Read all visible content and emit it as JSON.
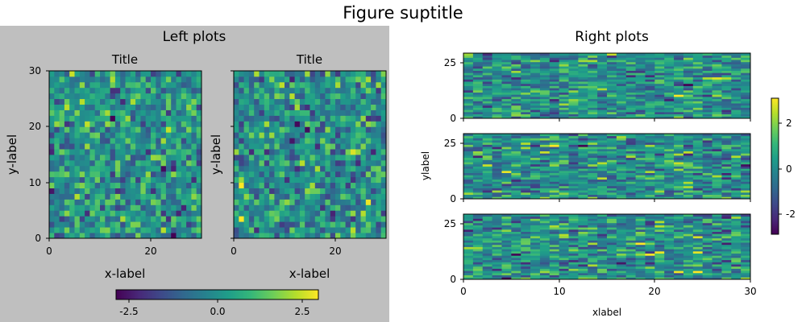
{
  "figure": {
    "suptitle": "Figure suptitle",
    "left_panel_title": "Left plots",
    "right_panel_title": "Right plots",
    "left_panel_background": "#bfbfbf",
    "colormap": "viridis",
    "colormap_stops": [
      "#440154",
      "#482878",
      "#3e4989",
      "#31688e",
      "#26828e",
      "#1f9e89",
      "#35b779",
      "#6ece58",
      "#b5de2b",
      "#fde725"
    ]
  },
  "chart_data": [
    {
      "type": "heatmap",
      "title": "Title",
      "xlabel": "x-label",
      "ylabel": "y-label",
      "xlim": [
        0,
        30
      ],
      "ylim": [
        0,
        30
      ],
      "grid_size": [
        30,
        30
      ],
      "value_range": [
        -3,
        3
      ],
      "xticks": [
        "0",
        "20"
      ],
      "yticks": [
        "0",
        "10",
        "20",
        "30"
      ],
      "data_note": "random normal values, approximately"
    },
    {
      "type": "heatmap",
      "title": "Title",
      "xlabel": "x-label",
      "ylabel": "y-label",
      "xlim": [
        0,
        30
      ],
      "ylim": [
        0,
        30
      ],
      "grid_size": [
        30,
        30
      ],
      "value_range": [
        -3,
        3
      ],
      "xticks": [
        "0",
        "20"
      ],
      "yticks": [],
      "data_note": "random normal values, approximately"
    },
    {
      "type": "heatmap",
      "title": "",
      "xlabel": "",
      "ylabel": "",
      "xlim": [
        0,
        30
      ],
      "ylim": [
        0,
        30
      ],
      "grid_size": [
        30,
        30
      ],
      "value_range": [
        -3,
        3
      ],
      "xticks": [],
      "yticks": [
        "0",
        "25"
      ]
    },
    {
      "type": "heatmap",
      "title": "",
      "xlabel": "",
      "ylabel": "ylabel",
      "xlim": [
        0,
        30
      ],
      "ylim": [
        0,
        30
      ],
      "grid_size": [
        30,
        30
      ],
      "value_range": [
        -3,
        3
      ],
      "xticks": [],
      "yticks": [
        "0",
        "25"
      ]
    },
    {
      "type": "heatmap",
      "title": "",
      "xlabel": "xlabel",
      "ylabel": "",
      "xlim": [
        0,
        30
      ],
      "ylim": [
        0,
        30
      ],
      "grid_size": [
        30,
        30
      ],
      "value_range": [
        -3,
        3
      ],
      "xticks": [
        "0",
        "10",
        "20",
        "30"
      ],
      "yticks": [
        "0",
        "25"
      ]
    }
  ],
  "colorbars": [
    {
      "name": "left-colorbar",
      "orientation": "horizontal",
      "range": [
        -3,
        3
      ],
      "ticks": [
        "-2.5",
        "0.0",
        "2.5"
      ],
      "tick_values": [
        -2.5,
        0.0,
        2.5
      ]
    },
    {
      "name": "right-colorbar",
      "orientation": "vertical",
      "range": [
        -3,
        3
      ],
      "ticks": [
        "-2",
        "0",
        "2"
      ],
      "tick_values": [
        -2,
        0,
        2
      ]
    }
  ]
}
